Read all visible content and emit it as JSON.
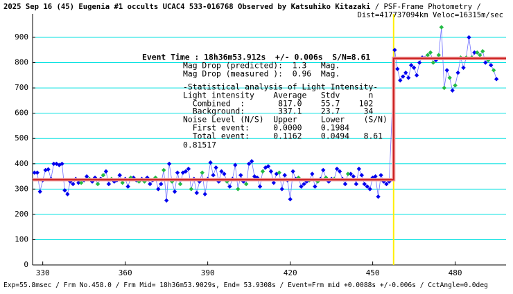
{
  "chart_data": {
    "type": "scatter",
    "title": "2025 Sep 16 (45) Eugenia #1 occults UCAC4 533-016768 Observed by Katsuhiko Kitazaki",
    "title_suffix": " / PSF-Frame Photometry /",
    "subtitle": "Dist=417737094km Veloc=16315m/sec",
    "annotations": [
      "Event Time : 18h36m53.912s  +/- 0.006s  S/N=8.61",
      "Mag Drop (predicted):  1.3   Mag.",
      "Mag Drop (measured ):  0.96  Mag.",
      "-Statistical analysis of Light Intensity-",
      "Light intensity    Average   Stdv      n",
      "  Combined  :       817.0    55.7    102",
      "  Background:       337.1    23.7     34",
      "Noise Level (N/S)  Upper     Lower    (S/N)",
      "  First event:     0.0000    0.1984",
      "  Total event:     0.1162    0.0494   8.61",
      "0.81517"
    ],
    "footer": "Exp=55.8msec / Frm No.458.0 / Frm Mid= 18h36m53.9029s, End= 53.9308s / Event=Frm mid +0.0088s +/-0.006s / CctAngle=0.0deg",
    "xlim": [
      326.3,
      498.5
    ],
    "ylim": [
      0,
      993
    ],
    "xticks": [
      330,
      360,
      390,
      420,
      450,
      480
    ],
    "yticks": [
      0,
      100,
      200,
      300,
      400,
      500,
      600,
      700,
      800,
      900
    ],
    "grid": true,
    "grid_color": "#00e0e0",
    "event_x": 457.6,
    "event_color": "#ffee00",
    "series": [
      {
        "color": "#0000ee",
        "x": [
          327,
          328,
          329,
          330,
          331,
          332,
          333,
          334,
          335,
          336,
          337,
          338,
          339,
          340,
          341,
          342,
          343,
          345,
          346,
          348,
          349,
          351,
          353,
          354,
          356,
          357,
          358,
          360,
          361,
          363,
          364,
          366,
          368,
          369,
          370,
          372,
          373,
          375,
          376,
          378,
          379,
          381,
          382,
          383,
          385,
          386,
          387,
          389,
          390,
          391,
          392,
          393,
          394,
          395,
          396,
          398,
          399,
          400,
          402,
          403,
          405,
          406,
          407,
          408,
          409,
          411,
          412,
          413,
          414,
          415,
          417,
          418,
          419,
          420,
          421,
          422,
          424,
          425,
          426,
          428,
          429,
          431,
          432,
          434,
          435,
          437,
          438,
          439,
          440,
          442,
          443,
          444,
          445,
          446,
          447,
          448,
          449,
          450,
          451,
          452,
          453,
          454,
          455,
          456,
          458,
          459,
          460,
          461,
          462,
          463,
          464,
          465,
          466,
          467,
          468,
          473,
          477,
          479,
          481,
          483,
          485,
          487,
          491,
          493,
          495
        ],
        "values": [
          365,
          365,
          290,
          335,
          375,
          378,
          340,
          400,
          400,
          395,
          400,
          295,
          280,
          330,
          320,
          340,
          325,
          335,
          350,
          330,
          345,
          340,
          370,
          320,
          330,
          335,
          355,
          340,
          310,
          345,
          335,
          340,
          345,
          320,
          335,
          300,
          320,
          255,
          400,
          290,
          365,
          365,
          370,
          380,
          340,
          285,
          330,
          280,
          340,
          405,
          355,
          385,
          330,
          370,
          360,
          310,
          340,
          395,
          355,
          330,
          400,
          410,
          350,
          345,
          310,
          385,
          390,
          370,
          325,
          360,
          300,
          355,
          335,
          260,
          370,
          340,
          310,
          320,
          330,
          360,
          310,
          340,
          375,
          330,
          340,
          380,
          370,
          340,
          320,
          360,
          350,
          320,
          380,
          355,
          320,
          310,
          300,
          345,
          350,
          270,
          355,
          330,
          320,
          330,
          850,
          775,
          730,
          745,
          760,
          740,
          790,
          780,
          750,
          800,
          820,
          810,
          770,
          690,
          760,
          780,
          900,
          840,
          800,
          790,
          735
        ]
      },
      {
        "color": "#22bb44",
        "x": [
          344,
          347,
          350,
          352,
          355,
          359,
          362,
          365,
          367,
          371,
          374,
          377,
          380,
          384,
          388,
          397,
          401,
          404,
          410,
          416,
          423,
          427,
          430,
          433,
          436,
          441,
          470,
          471,
          472,
          474,
          475,
          476,
          478,
          480,
          482,
          484,
          486,
          488,
          489,
          490,
          492,
          494
        ],
        "values": [
          325,
          340,
          320,
          355,
          340,
          325,
          345,
          330,
          330,
          345,
          375,
          330,
          320,
          300,
          365,
          330,
          300,
          320,
          370,
          365,
          345,
          335,
          330,
          345,
          340,
          360,
          830,
          840,
          800,
          830,
          940,
          700,
          740,
          710,
          820,
          820,
          820,
          840,
          830,
          845,
          810,
          770
        ]
      },
      {
        "type": "line",
        "color": "#cc2020",
        "x": [
          326.3,
          457.6,
          457.6,
          498.5
        ],
        "values": [
          337.1,
          337.1,
          817,
          817
        ]
      }
    ]
  }
}
